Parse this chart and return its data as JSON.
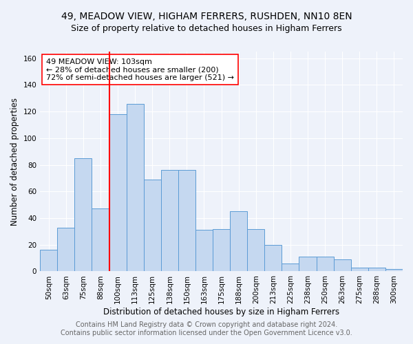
{
  "title": "49, MEADOW VIEW, HIGHAM FERRERS, RUSHDEN, NN10 8EN",
  "subtitle": "Size of property relative to detached houses in Higham Ferrers",
  "xlabel": "Distribution of detached houses by size in Higham Ferrers",
  "ylabel": "Number of detached properties",
  "footer_line1": "Contains HM Land Registry data © Crown copyright and database right 2024.",
  "footer_line2": "Contains public sector information licensed under the Open Government Licence v3.0.",
  "bar_labels": [
    "50sqm",
    "63sqm",
    "75sqm",
    "88sqm",
    "100sqm",
    "113sqm",
    "125sqm",
    "138sqm",
    "150sqm",
    "163sqm",
    "175sqm",
    "188sqm",
    "200sqm",
    "213sqm",
    "225sqm",
    "238sqm",
    "250sqm",
    "263sqm",
    "275sqm",
    "288sqm",
    "300sqm"
  ],
  "bar_values": [
    16,
    33,
    85,
    47,
    118,
    126,
    69,
    76,
    76,
    31,
    32,
    45,
    32,
    20,
    6,
    11,
    11,
    9,
    3,
    3,
    2
  ],
  "bar_color": "#c5d8f0",
  "bar_edge_color": "#5b9bd5",
  "vline_x": 4.0,
  "vline_color": "red",
  "annotation_text": "49 MEADOW VIEW: 103sqm\n← 28% of detached houses are smaller (200)\n72% of semi-detached houses are larger (521) →",
  "ylim": [
    0,
    165
  ],
  "yticks": [
    0,
    20,
    40,
    60,
    80,
    100,
    120,
    140,
    160
  ],
  "title_fontsize": 10,
  "subtitle_fontsize": 9,
  "xlabel_fontsize": 8.5,
  "ylabel_fontsize": 8.5,
  "tick_fontsize": 7.5,
  "footer_fontsize": 7,
  "background_color": "#eef2fa",
  "plot_background_color": "#eef2fa",
  "grid_color": "#ffffff",
  "annotation_fontsize": 8
}
